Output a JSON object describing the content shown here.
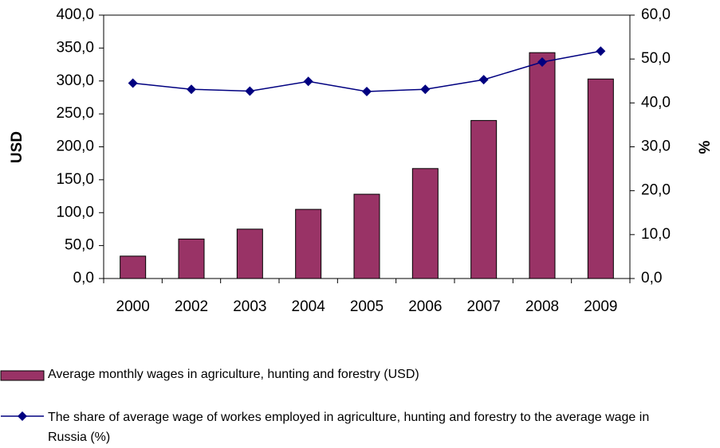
{
  "chart_data": {
    "type": "bar-line",
    "ylabel": "USD",
    "y2label": "%",
    "categories": [
      "2000",
      "2002",
      "2003",
      "2004",
      "2005",
      "2006",
      "2007",
      "2008",
      "2009"
    ],
    "series": [
      {
        "name": "Average monthly wages in agriculture, hunting and forestry (USD)",
        "type": "bar",
        "color": "#993366",
        "values": [
          34,
          60,
          75,
          105,
          128,
          167,
          240,
          343,
          303
        ]
      },
      {
        "name": "The share of average wage of workes employed in agriculture, hunting and forestry to the average wage in Russia (%)",
        "type": "line",
        "axis": "y2",
        "color": "#000080",
        "values": [
          44.5,
          43.1,
          42.7,
          44.9,
          42.6,
          43.1,
          45.3,
          49.3,
          51.8
        ]
      }
    ],
    "ylim": [
      0,
      400
    ],
    "yticks": [
      {
        "value": 0,
        "label": "0,0"
      },
      {
        "value": 50,
        "label": "50,0"
      },
      {
        "value": 100,
        "label": "100,0"
      },
      {
        "value": 150,
        "label": "150,0"
      },
      {
        "value": 200,
        "label": "200,0"
      },
      {
        "value": 250,
        "label": "250,0"
      },
      {
        "value": 300,
        "label": "300,0"
      },
      {
        "value": 350,
        "label": "350,0"
      },
      {
        "value": 400,
        "label": "400,0"
      }
    ],
    "y2lim": [
      0,
      60
    ],
    "y2ticks": [
      {
        "value": 0,
        "label": "0,0"
      },
      {
        "value": 10,
        "label": "10,0"
      },
      {
        "value": 20,
        "label": "20,0"
      },
      {
        "value": 30,
        "label": "30,0"
      },
      {
        "value": 40,
        "label": "40,0"
      },
      {
        "value": 50,
        "label": "50,0"
      },
      {
        "value": 60,
        "label": "60,0"
      }
    ]
  }
}
